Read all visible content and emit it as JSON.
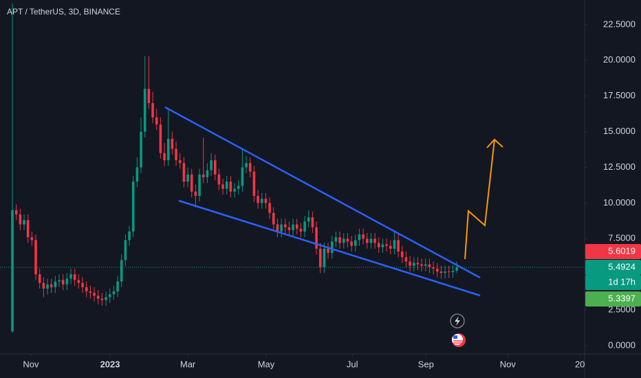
{
  "chart_data": {
    "type": "candlestick",
    "title": "APT / TetherUS, 3D, BINANCE",
    "up_color": "#089981",
    "down_color": "#f23645",
    "candles": {
      "open": [
        1.0,
        9.5,
        9.2,
        8.5,
        8.8,
        7.6,
        7.4,
        5.0,
        4.4,
        4.0,
        4.3,
        4.1,
        4.5,
        4.6,
        4.3,
        4.7,
        5.0,
        4.6,
        4.4,
        4.1,
        3.8,
        3.7,
        3.5,
        3.3,
        3.2,
        3.4,
        3.6,
        3.8,
        4.5,
        6.0,
        7.4,
        8.0,
        11.5,
        12.5,
        15.0,
        18.0,
        17.0,
        16.0,
        15.5,
        13.5,
        13.0,
        14.5,
        13.8,
        13.0,
        12.8,
        11.5,
        12.0,
        10.8,
        10.5,
        12.0,
        11.8,
        12.3,
        13.0,
        12.0,
        11.3,
        11.0,
        11.5,
        10.8,
        11.0,
        11.2,
        12.5,
        12.8,
        12.2,
        10.5,
        10.0,
        10.3,
        10.0,
        9.3,
        8.5,
        8.0,
        8.5,
        8.3,
        8.1,
        8.5,
        8.2,
        8.0,
        8.7,
        9.0,
        8.3,
        6.8,
        5.5,
        6.8,
        6.5,
        7.3,
        7.6,
        7.2,
        7.5,
        7.3,
        7.0,
        7.4,
        7.8,
        7.5,
        7.2,
        7.5,
        7.2,
        6.9,
        7.1,
        7.0,
        6.8,
        7.4,
        6.6,
        6.2,
        5.9,
        5.6,
        5.8,
        5.7,
        5.6,
        5.7,
        5.5,
        5.4,
        5.2,
        5.1,
        5.2,
        5.15,
        5.25
      ],
      "high": [
        24.0,
        9.9,
        9.6,
        9.2,
        9.2,
        8.0,
        7.8,
        5.4,
        4.8,
        4.7,
        4.7,
        4.9,
        5.0,
        5.0,
        5.1,
        5.4,
        5.4,
        5.0,
        4.8,
        4.5,
        4.2,
        4.1,
        3.9,
        3.7,
        3.8,
        4.0,
        4.2,
        4.9,
        6.4,
        7.8,
        8.4,
        11.9,
        13.2,
        16.0,
        20.3,
        20.3,
        17.8,
        16.6,
        16.0,
        14.2,
        16.5,
        15.0,
        14.3,
        13.5,
        13.2,
        12.5,
        12.4,
        11.3,
        12.4,
        14.6,
        12.8,
        13.5,
        13.4,
        12.4,
        11.7,
        11.9,
        11.9,
        11.4,
        11.6,
        13.8,
        13.3,
        13.2,
        12.6,
        10.9,
        10.7,
        10.7,
        10.4,
        9.7,
        8.9,
        8.9,
        8.9,
        8.7,
        8.9,
        8.9,
        8.6,
        9.1,
        9.5,
        9.4,
        8.7,
        7.2,
        7.2,
        7.2,
        7.7,
        8.0,
        8.0,
        7.9,
        7.9,
        7.7,
        7.8,
        8.2,
        8.2,
        7.9,
        7.9,
        7.9,
        7.6,
        7.5,
        7.5,
        7.4,
        8.0,
        7.8,
        7.0,
        6.6,
        6.3,
        6.2,
        6.2,
        6.1,
        6.1,
        6.1,
        5.9,
        5.8,
        5.6,
        5.6,
        5.6,
        5.65,
        5.9
      ],
      "low": [
        0.9,
        8.8,
        8.1,
        8.1,
        7.2,
        7.0,
        4.6,
        4.0,
        3.4,
        3.6,
        3.7,
        3.7,
        4.1,
        3.9,
        3.9,
        4.3,
        4.2,
        4.0,
        3.7,
        3.4,
        3.3,
        3.1,
        2.9,
        2.8,
        2.8,
        3.0,
        3.2,
        3.4,
        4.1,
        5.6,
        7.0,
        7.6,
        11.1,
        12.1,
        14.6,
        16.6,
        15.6,
        15.1,
        13.1,
        12.6,
        12.6,
        13.4,
        12.6,
        12.4,
        11.1,
        11.1,
        10.4,
        9.7,
        10.1,
        11.4,
        11.4,
        11.9,
        11.6,
        10.9,
        10.6,
        10.6,
        10.4,
        10.4,
        10.6,
        10.8,
        12.1,
        11.8,
        10.1,
        9.6,
        9.6,
        9.6,
        8.9,
        8.1,
        7.6,
        7.6,
        7.9,
        7.7,
        7.7,
        7.8,
        7.6,
        7.6,
        8.3,
        7.9,
        6.4,
        5.1,
        5.1,
        6.1,
        6.1,
        6.9,
        6.8,
        6.8,
        6.9,
        6.6,
        6.6,
        7.0,
        7.1,
        6.8,
        6.8,
        6.8,
        6.5,
        6.5,
        6.6,
        6.4,
        6.4,
        6.2,
        5.8,
        5.5,
        5.2,
        5.2,
        5.3,
        5.2,
        5.2,
        5.1,
        5.0,
        4.8,
        4.7,
        4.7,
        4.75,
        4.75,
        5.1
      ],
      "close": [
        9.5,
        9.2,
        8.5,
        8.8,
        7.6,
        7.4,
        5.0,
        4.4,
        4.0,
        4.3,
        4.1,
        4.5,
        4.6,
        4.3,
        4.7,
        5.0,
        4.6,
        4.4,
        4.1,
        3.8,
        3.7,
        3.5,
        3.3,
        3.2,
        3.4,
        3.6,
        3.8,
        4.5,
        6.0,
        7.4,
        8.0,
        11.5,
        12.5,
        15.0,
        18.0,
        17.0,
        16.0,
        15.5,
        13.5,
        13.0,
        14.5,
        13.8,
        13.0,
        12.8,
        11.5,
        12.0,
        10.8,
        10.5,
        12.0,
        11.8,
        12.3,
        13.0,
        12.0,
        11.3,
        11.0,
        11.5,
        10.8,
        11.0,
        11.2,
        12.5,
        12.8,
        12.2,
        10.5,
        10.0,
        10.3,
        10.0,
        9.3,
        8.5,
        8.0,
        8.5,
        8.3,
        8.1,
        8.5,
        8.2,
        8.0,
        8.7,
        9.0,
        8.3,
        6.8,
        5.5,
        6.8,
        6.5,
        7.3,
        7.6,
        7.2,
        7.5,
        7.3,
        7.0,
        7.4,
        7.8,
        7.5,
        7.2,
        7.5,
        7.2,
        6.9,
        7.1,
        7.0,
        6.8,
        7.4,
        6.6,
        6.2,
        5.9,
        5.6,
        5.8,
        5.7,
        5.6,
        5.7,
        5.5,
        5.4,
        5.2,
        5.1,
        5.2,
        5.15,
        5.25,
        5.49
      ]
    },
    "xlim": [
      -3.18,
      146.8
    ],
    "xticks": [
      {
        "value": 4.76,
        "label": "Nov"
      },
      {
        "value": 25.06,
        "label": "2023"
      },
      {
        "value": 45.0,
        "label": "Mar"
      },
      {
        "value": 65.1,
        "label": "May"
      },
      {
        "value": 87.2,
        "label": "Jul"
      },
      {
        "value": 106.1,
        "label": "Sep"
      },
      {
        "value": 127.1,
        "label": "Nov"
      },
      {
        "value": 145.6,
        "label": "20"
      }
    ],
    "ylim": [
      -0.58,
      24.23
    ],
    "yticks": [
      {
        "value": 0,
        "label": "0.0000"
      },
      {
        "value": 2.5,
        "label": "2.5000"
      },
      {
        "value": 5,
        "label": "5.0000"
      },
      {
        "value": 7.5,
        "label": "7.5000"
      },
      {
        "value": 10,
        "label": "10.0000"
      },
      {
        "value": 12.5,
        "label": "12.5000"
      },
      {
        "value": 15,
        "label": "15.0000"
      },
      {
        "value": 17.5,
        "label": "17.5000"
      },
      {
        "value": 20,
        "label": "20.0000"
      },
      {
        "value": 22.5,
        "label": "22.5000"
      }
    ],
    "price_labels": [
      {
        "value": 5.6019,
        "color": "#f23645"
      },
      {
        "value": 5.4924,
        "color": "#089981"
      },
      {
        "label": "1d 17h",
        "color": "#089981"
      },
      {
        "value": 5.3397,
        "color": "#4caf50"
      }
    ]
  }
}
